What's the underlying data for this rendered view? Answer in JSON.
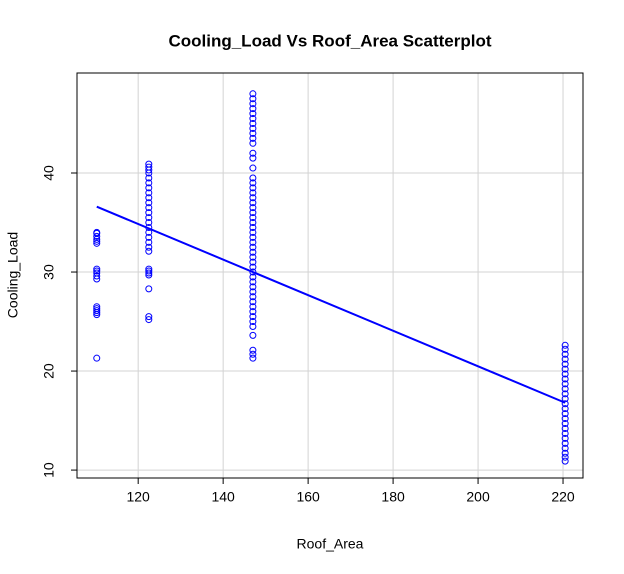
{
  "chart_data": {
    "type": "scatter",
    "title": "Cooling_Load Vs Roof_Area Scatterplot",
    "x_label": "Roof_Area",
    "y_label": "Cooling_Load",
    "xlim": [
      105.6,
      224.7
    ],
    "ylim": [
      9.2,
      50.1
    ],
    "xticks": [
      120,
      140,
      160,
      180,
      200,
      220
    ],
    "yticks": [
      10,
      20,
      30,
      40
    ],
    "grid": true,
    "series": [
      {
        "color": "#0000ff",
        "x": [
          110.25,
          110.25,
          110.25,
          110.25,
          110.25,
          110.25,
          110.25,
          110.25,
          110.25,
          110.25,
          110.25,
          110.25,
          110.25,
          110.25,
          110.25,
          110.25,
          110.25
        ],
        "values": [
          21.3,
          25.7,
          25.9,
          26.1,
          26.3,
          26.5,
          29.3,
          29.6,
          29.9,
          30.1,
          30.3,
          32.9,
          33.1,
          33.3,
          33.6,
          33.9,
          34.0
        ]
      },
      {
        "color": "#0000ff",
        "x": [
          122.5,
          122.5,
          122.5,
          122.5,
          122.5,
          122.5,
          122.5,
          122.5,
          122.5,
          122.5,
          122.5,
          122.5,
          122.5,
          122.5,
          122.5,
          122.5,
          122.5,
          122.5,
          122.5,
          122.5,
          122.5,
          122.5,
          122.5,
          122.5,
          122.5,
          122.5,
          122.5
        ],
        "values": [
          25.2,
          25.5,
          28.3,
          29.7,
          29.9,
          30.1,
          30.3,
          32.1,
          32.5,
          33.0,
          33.5,
          34,
          34.5,
          35,
          35.5,
          36,
          36.5,
          37,
          37.5,
          38,
          38.5,
          39,
          39.5,
          40,
          40.3,
          40.6,
          40.9
        ]
      },
      {
        "color": "#0000ff",
        "x": [
          147,
          147,
          147,
          147,
          147,
          147,
          147,
          147,
          147,
          147,
          147,
          147,
          147,
          147,
          147,
          147,
          147,
          147,
          147,
          147,
          147,
          147,
          147,
          147,
          147,
          147,
          147,
          147,
          147,
          147,
          147,
          147,
          147,
          147,
          147,
          147,
          147,
          147,
          147,
          147,
          147,
          147,
          147,
          147,
          147,
          147,
          147,
          147,
          147
        ],
        "values": [
          21.3,
          21.7,
          22.1,
          23.6,
          24.5,
          25,
          25.5,
          26,
          26.5,
          27,
          27.5,
          28,
          28.5,
          29,
          29.5,
          30,
          30.5,
          31,
          31.5,
          32,
          32.5,
          33,
          33.5,
          34,
          34.5,
          35,
          35.5,
          36,
          36.5,
          37,
          37.5,
          38,
          38.5,
          39,
          39.5,
          40.5,
          41.5,
          42,
          43,
          43.5,
          44,
          44.5,
          45,
          45.5,
          46,
          46.5,
          47,
          47.5,
          48
        ]
      },
      {
        "color": "#0000ff",
        "x": [
          220.5,
          220.5,
          220.5,
          220.5,
          220.5,
          220.5,
          220.5,
          220.5,
          220.5,
          220.5,
          220.5,
          220.5,
          220.5,
          220.5,
          220.5,
          220.5,
          220.5,
          220.5,
          220.5,
          220.5,
          220.5,
          220.5,
          220.5,
          220.5,
          220.5
        ],
        "values": [
          10.9,
          11.3,
          11.7,
          12.2,
          12.7,
          13.2,
          13.7,
          14.2,
          14.7,
          15.2,
          15.7,
          16.2,
          16.7,
          17.2,
          17.7,
          18.2,
          18.7,
          19.2,
          19.7,
          20.2,
          20.7,
          21.2,
          21.7,
          22.2,
          22.6
        ]
      }
    ],
    "fit_line": {
      "color": "#0000ff",
      "x": [
        110.25,
        220.5
      ],
      "values": [
        36.6,
        16.8
      ]
    }
  }
}
